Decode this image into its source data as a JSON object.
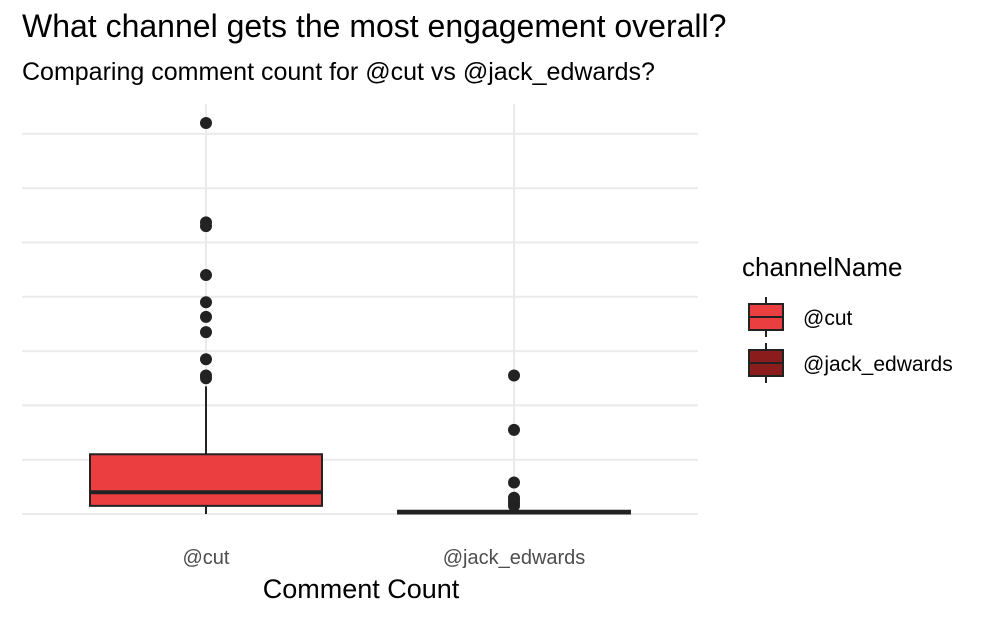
{
  "chart_data": {
    "type": "box",
    "title": "What channel gets the most engagement overall?",
    "subtitle": "Comparing comment count for @cut vs @jack_edwards?",
    "xlabel": "Comment Count",
    "ylabel": "",
    "categories": [
      "@cut",
      "@jack_edwards"
    ],
    "ylim": [
      0,
      7.2
    ],
    "y_ticks_shown": false,
    "grid": true,
    "legend": {
      "title": "channelName",
      "placement": "right",
      "entries": [
        "@cut",
        "@jack_edwards"
      ]
    },
    "colors": {
      "@cut": "#ea3e40",
      "@jack_edwards": "#8b1c1c"
    },
    "series": [
      {
        "name": "@cut",
        "min": 0,
        "q1": 0.15,
        "median": 0.4,
        "q3": 1.1,
        "whisker_high": 2.35,
        "outliers": [
          2.5,
          2.55,
          2.85,
          3.35,
          3.63,
          3.9,
          4.4,
          5.3,
          5.37,
          7.2
        ]
      },
      {
        "name": "@jack_edwards",
        "min": 0,
        "q1": 0.01,
        "median": 0.03,
        "q3": 0.06,
        "whisker_high": 0.08,
        "outliers": [
          0.15,
          0.2,
          0.25,
          0.3,
          0.58,
          1.55,
          2.55
        ]
      }
    ]
  }
}
